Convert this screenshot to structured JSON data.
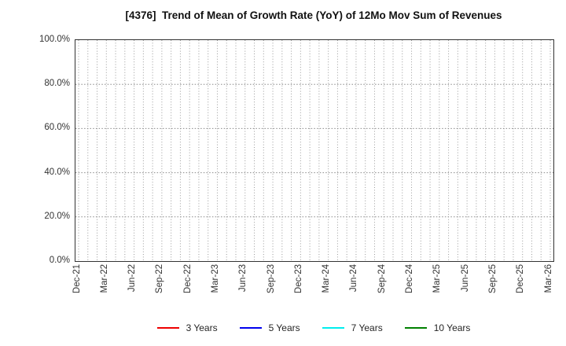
{
  "chart_data": {
    "type": "line",
    "title": "[4376]  Trend of Mean of Growth Rate (YoY) of 12Mo Mov Sum of Revenues",
    "xlabel": "",
    "ylabel": "",
    "x_tick_labels": [
      "Dec-21",
      "Mar-22",
      "Jun-22",
      "Sep-22",
      "Dec-22",
      "Mar-23",
      "Jun-23",
      "Sep-23",
      "Dec-23",
      "Mar-24",
      "Jun-24",
      "Sep-24",
      "Dec-24",
      "Mar-25",
      "Jun-25",
      "Sep-25",
      "Dec-25",
      "Mar-26"
    ],
    "months_per_labeled_tick": 3,
    "total_month_intervals": 51,
    "y_tick_labels": [
      "0.0%",
      "20.0%",
      "40.0%",
      "60.0%",
      "80.0%",
      "100.0%"
    ],
    "ylim": [
      0,
      100
    ],
    "y_gridline_values": [
      20,
      40,
      60,
      80
    ],
    "grid": "dotted, vertical line at every month, horizontal at every 20%",
    "legend_position": "bottom-center",
    "series": [
      {
        "name": "3 Years",
        "color": "#ee0000",
        "values": []
      },
      {
        "name": "5 Years",
        "color": "#0000ee",
        "values": []
      },
      {
        "name": "7 Years",
        "color": "#00eeee",
        "values": []
      },
      {
        "name": "10 Years",
        "color": "#008000",
        "values": []
      }
    ],
    "note": "Plot area is empty - no data lines are drawn for any series"
  },
  "style_colors": {
    "grid_vertical": "#9a9a9a",
    "grid_horizontal": "#8a8a8a",
    "axis_border": "#333333",
    "title_color": "#111111",
    "tick_label_color": "#333333"
  }
}
